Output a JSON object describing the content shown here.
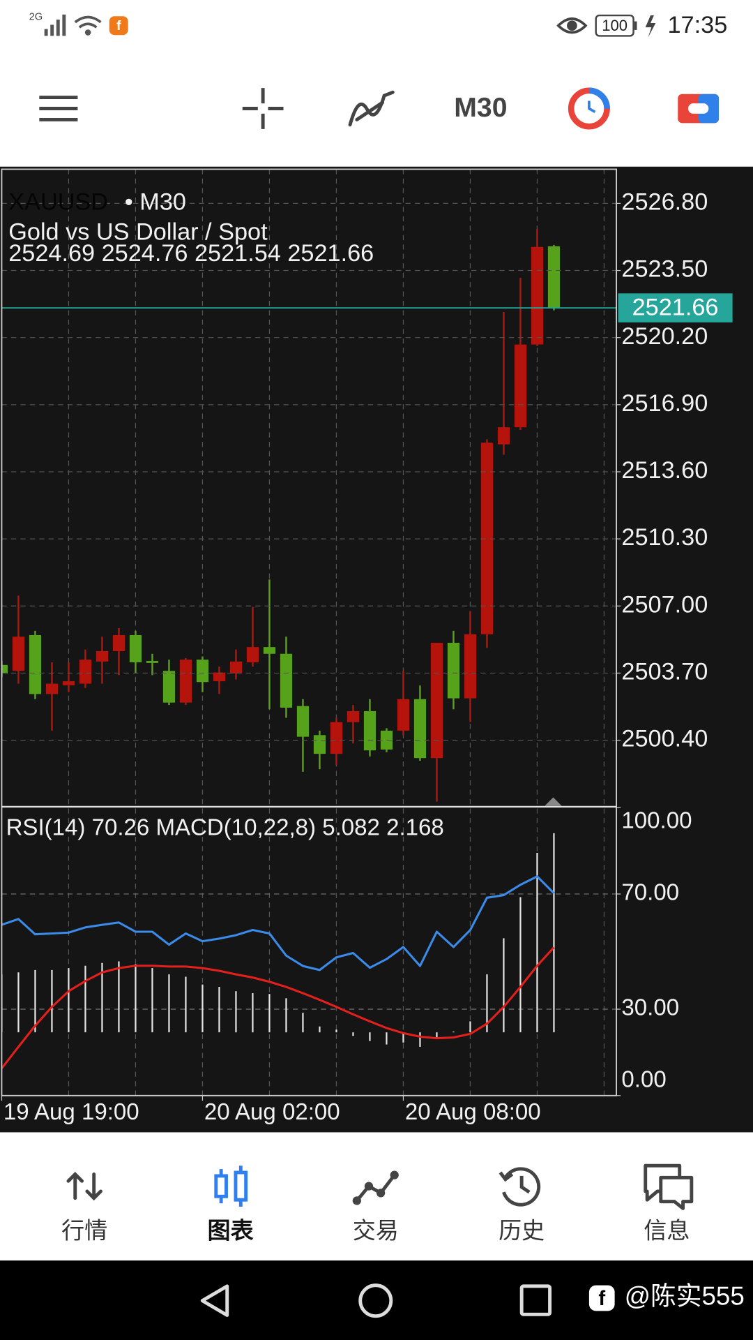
{
  "status": {
    "network": "2G",
    "battery": "100",
    "time": "17:35"
  },
  "toolbar": {
    "timeframe": "M30"
  },
  "chart_data": {
    "type": "candlestick",
    "symbol": "XAUUSD",
    "timeframe_label": "• M30",
    "subtitle": "Gold vs US Dollar / Spot",
    "ohlc_text": "2524.69 2524.76 2521.54 2521.66",
    "categories": [
      "19 Aug 19:00",
      null,
      null,
      null,
      null,
      null,
      null,
      null,
      null,
      null,
      null,
      null,
      "20 Aug 02:00",
      null,
      null,
      null,
      null,
      null,
      null,
      null,
      null,
      null,
      null,
      null,
      "20 Aug 08:00",
      null,
      null,
      null,
      null,
      null,
      null,
      null,
      null,
      null
    ],
    "open": [
      2504.1,
      2503.81,
      2505.57,
      2502.67,
      2503.1,
      2503.18,
      2504.27,
      2504.78,
      2505.57,
      2504.3,
      2503.81,
      2502.25,
      2504.36,
      2503.3,
      2503.68,
      2504.23,
      2504.98,
      2504.65,
      2502.08,
      2500.65,
      2499.73,
      2501.29,
      2501.83,
      2500.87,
      2500.87,
      2502.42,
      2499.52,
      2505.19,
      2502.46,
      2505.61,
      2514.95,
      2515.79,
      2519.86,
      2524.69
    ],
    "high": [
      2504.3,
      2507.51,
      2505.78,
      2504.23,
      2504.23,
      2504.86,
      2505.49,
      2505.91,
      2505.78,
      2504.65,
      2504.36,
      2504.44,
      2504.52,
      2504.02,
      2504.86,
      2506.96,
      2508.3,
      2505.49,
      2502.42,
      2500.87,
      2501.5,
      2502.13,
      2502.42,
      2500.99,
      2503.81,
      2503.09,
      2505.19,
      2505.78,
      2506.75,
      2515.2,
      2521.46,
      2523.14,
      2525.54,
      2524.76
    ],
    "low": [
      2503.5,
      2503.18,
      2502.42,
      2500.87,
      2502.76,
      2502.97,
      2503.18,
      2503.6,
      2503.68,
      2503.6,
      2502.13,
      2502.13,
      2502.76,
      2502.67,
      2503.39,
      2504.02,
      2501.92,
      2501.5,
      2498.85,
      2498.97,
      2499.18,
      2500.24,
      2499.6,
      2499.81,
      2500.65,
      2499.39,
      2497.38,
      2501.92,
      2501.29,
      2504.94,
      2514.44,
      2515.66,
      2519.78,
      2521.54
    ],
    "close": [
      2503.68,
      2505.49,
      2502.67,
      2503.18,
      2503.3,
      2504.36,
      2504.78,
      2505.57,
      2504.23,
      2504.2,
      2502.25,
      2504.36,
      2503.26,
      2503.73,
      2504.27,
      2504.98,
      2504.65,
      2502.0,
      2500.57,
      2499.73,
      2501.29,
      2501.83,
      2499.9,
      2499.94,
      2502.42,
      2499.52,
      2505.19,
      2502.46,
      2505.61,
      2515.03,
      2515.79,
      2519.86,
      2524.66,
      2521.66
    ],
    "up_color": "#b5140c",
    "down_color": "#56a31b",
    "ylim": [
      2497.17,
      2528.48
    ],
    "yticks": [
      {
        "value": 2526.8,
        "label": "2526.80"
      },
      {
        "value": 2523.5,
        "label": "2523.50"
      },
      {
        "value": 2520.2,
        "label": "2520.20"
      },
      {
        "value": 2516.9,
        "label": "2516.90"
      },
      {
        "value": 2513.6,
        "label": "2513.60"
      },
      {
        "value": 2510.3,
        "label": "2510.30"
      },
      {
        "value": 2507,
        "label": "2507.00"
      },
      {
        "value": 2503.7,
        "label": "2503.70"
      },
      {
        "value": 2500.4,
        "label": "2500.40"
      }
    ],
    "grid": true,
    "current_price": 2521.66,
    "current_price_color": "#26a69a",
    "indicator": {
      "label": "RSI(14) 70.26 MACD(10,22,8) 5.082 2.168",
      "ylim": [
        0,
        100
      ],
      "yticks": [
        {
          "value": 100,
          "label": "100.00"
        },
        {
          "value": 70,
          "label": "70.00"
        },
        {
          "value": 30,
          "label": "30.00"
        },
        {
          "value": 0,
          "label": "0.00"
        }
      ],
      "y2lim": [
        -1.614,
        5.736
      ],
      "rsi": {
        "color": "#3b8beb",
        "values": [
          59.3,
          61.3,
          56.0,
          56.3,
          56.6,
          58.4,
          59.3,
          60.1,
          56.9,
          56.9,
          52.4,
          56.3,
          53.6,
          54.5,
          55.7,
          57.5,
          56.3,
          48.6,
          45.0,
          43.6,
          48.0,
          49.5,
          44.4,
          47.4,
          51.6,
          45.0,
          56.9,
          51.6,
          57.5,
          68.7,
          69.6,
          73.2,
          76.1,
          70.26
        ]
      },
      "macd_histogram": {
        "color": "#e6e6e6",
        "axis": "y2",
        "values": [
          1.48,
          1.53,
          1.59,
          1.59,
          1.64,
          1.7,
          1.77,
          1.81,
          1.74,
          1.64,
          1.48,
          1.42,
          1.22,
          1.16,
          1.05,
          1.0,
          0.98,
          0.87,
          0.5,
          0.15,
          0.07,
          -0.09,
          -0.22,
          -0.31,
          -0.26,
          -0.37,
          -0.15,
          0.02,
          0.28,
          1.48,
          2.4,
          3.45,
          4.58,
          5.082
        ]
      },
      "macd_signal": {
        "color": "#e3201b",
        "axis": "y2",
        "values": [
          -0.92,
          -0.37,
          0.17,
          0.65,
          1.05,
          1.31,
          1.53,
          1.64,
          1.7,
          1.7,
          1.68,
          1.68,
          1.64,
          1.57,
          1.48,
          1.4,
          1.29,
          1.16,
          1.0,
          0.83,
          0.65,
          0.46,
          0.28,
          0.11,
          -0.02,
          -0.11,
          -0.15,
          -0.13,
          -0.04,
          0.22,
          0.65,
          1.16,
          1.7,
          2.168
        ]
      }
    }
  },
  "nav": {
    "items": [
      {
        "label": "行情"
      },
      {
        "label": "图表"
      },
      {
        "label": "交易"
      },
      {
        "label": "历史"
      },
      {
        "label": "信息"
      }
    ]
  },
  "watermark": "@陈实555"
}
